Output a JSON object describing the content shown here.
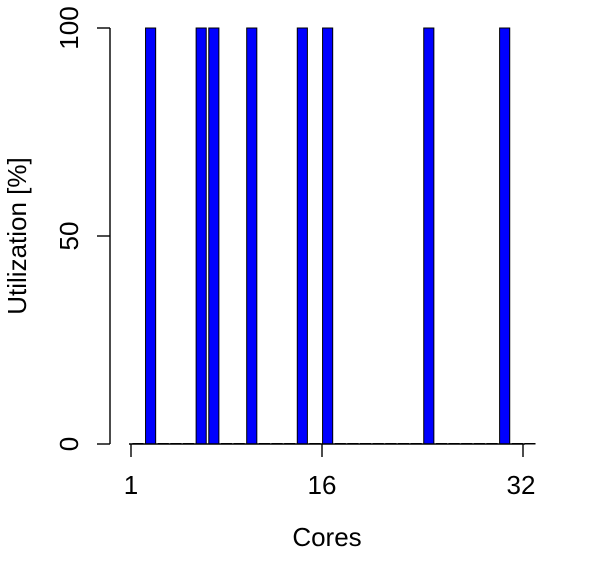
{
  "chart_data": {
    "type": "bar",
    "xlabel": "Cores",
    "ylabel": "Utilization [%]",
    "x_ticks": [
      "1",
      "16",
      "32"
    ],
    "y_ticks": [
      "0",
      "50",
      "100"
    ],
    "xlim": [
      1,
      32
    ],
    "ylim": [
      0,
      100
    ],
    "grid": false,
    "legend": "none",
    "bar_color": "#0000ff",
    "categories": [
      "1",
      "2",
      "3",
      "4",
      "5",
      "6",
      "7",
      "8",
      "9",
      "10",
      "11",
      "12",
      "13",
      "14",
      "15",
      "16",
      "17",
      "18",
      "19",
      "20",
      "21",
      "22",
      "23",
      "24",
      "25",
      "26",
      "27",
      "28",
      "29",
      "30",
      "31",
      "32"
    ],
    "values": [
      0,
      100,
      0,
      0,
      0,
      100,
      100,
      0,
      0,
      100,
      0,
      0,
      0,
      100,
      0,
      100,
      0,
      0,
      0,
      0,
      0,
      0,
      0,
      100,
      0,
      0,
      0,
      0,
      0,
      100,
      0,
      0
    ]
  }
}
